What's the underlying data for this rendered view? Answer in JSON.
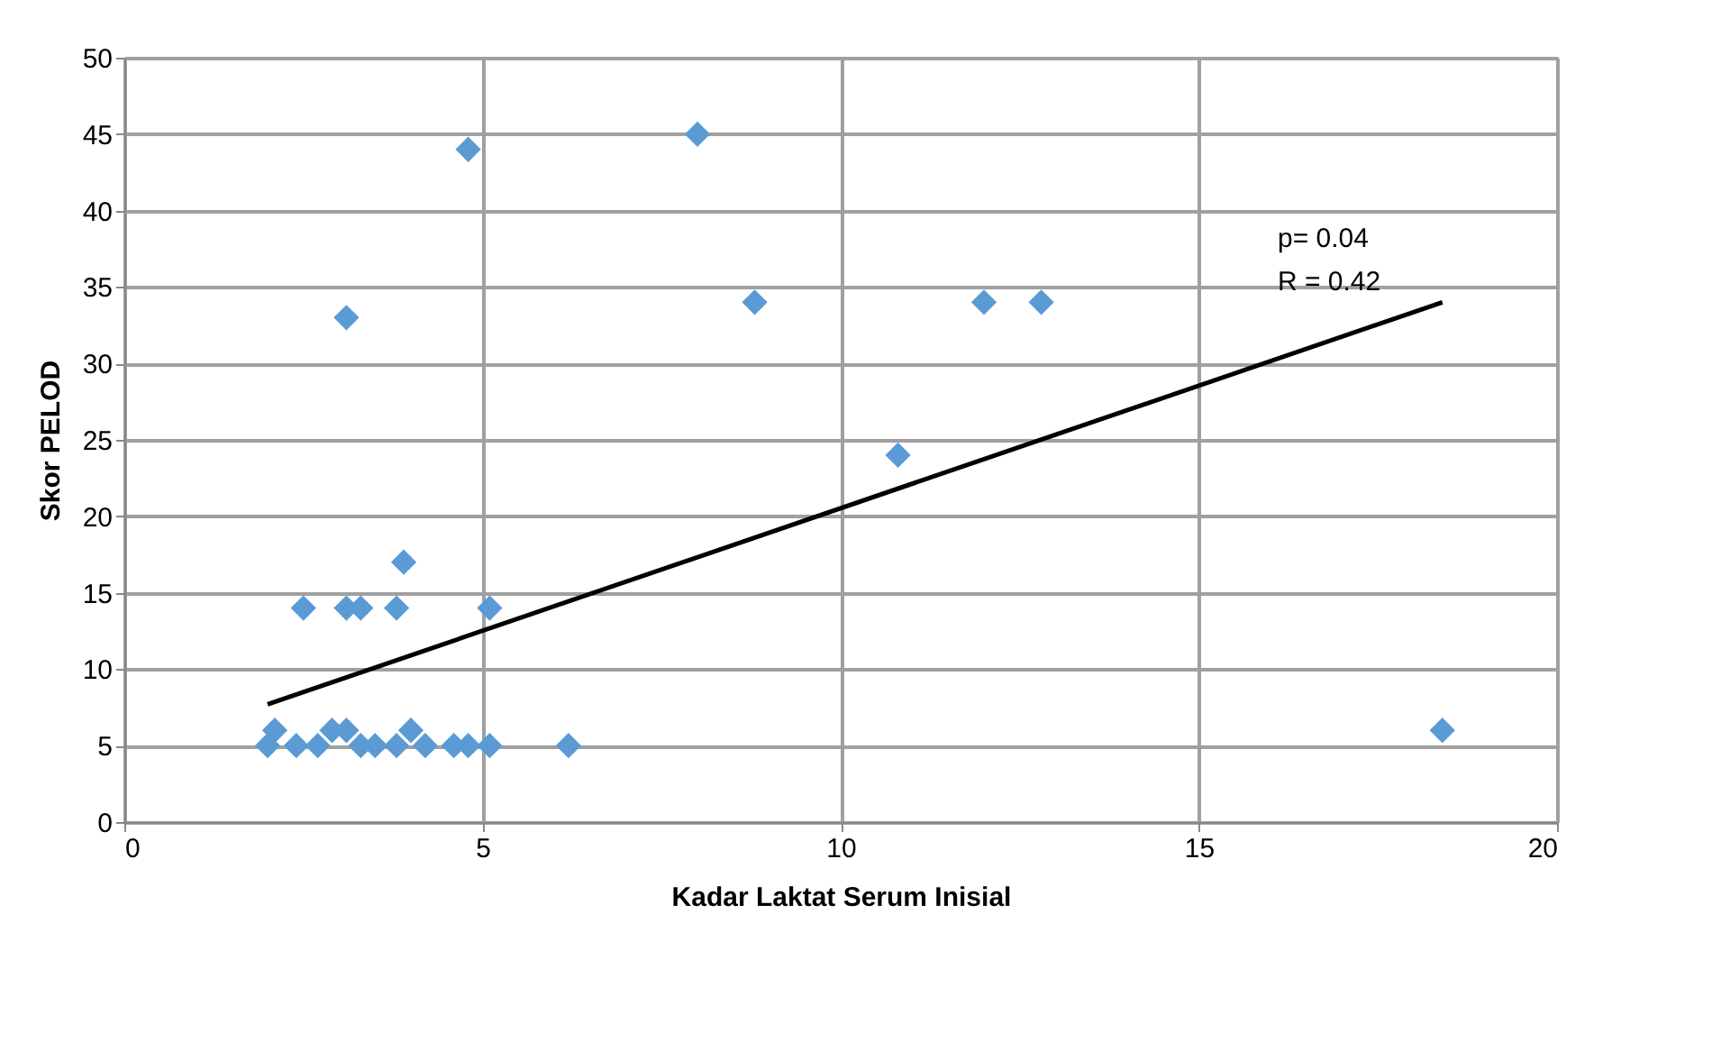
{
  "chart_data": {
    "type": "scatter",
    "xlabel": "Kadar Laktat Serum Inisial",
    "ylabel": "Skor PELOD",
    "xlim": [
      0,
      20
    ],
    "xticks": [
      0,
      5,
      10,
      15,
      20
    ],
    "ylim": [
      0,
      50
    ],
    "yticks": [
      0,
      5,
      10,
      15,
      20,
      25,
      30,
      35,
      40,
      45,
      50
    ],
    "grid": true,
    "series": [
      {
        "color": "#5b9bd5",
        "marker": "diamond",
        "x": [
          4.8,
          8.0,
          3.1,
          8.8,
          12.0,
          12.8,
          10.8,
          3.9,
          2.5,
          3.1,
          3.3,
          3.8,
          5.1,
          2.0,
          2.1,
          2.4,
          2.7,
          2.9,
          3.1,
          3.3,
          3.5,
          3.8,
          4.0,
          4.2,
          4.6,
          4.8,
          5.0,
          5.1,
          6.2,
          18.4
        ],
        "values": [
          44,
          45,
          33,
          34,
          34,
          34,
          24,
          17,
          14,
          14,
          14,
          14,
          14,
          5,
          6,
          5,
          5,
          6,
          6,
          5,
          5,
          5,
          6,
          5,
          5,
          5,
          null,
          5,
          5,
          6
        ]
      },
      {
        "type": "line",
        "color": "#000000",
        "x": [
          2.0,
          18.4
        ],
        "values": [
          7.7,
          34
        ]
      }
    ],
    "annotations": [
      "p= 0.04",
      "R = 0.42"
    ]
  }
}
